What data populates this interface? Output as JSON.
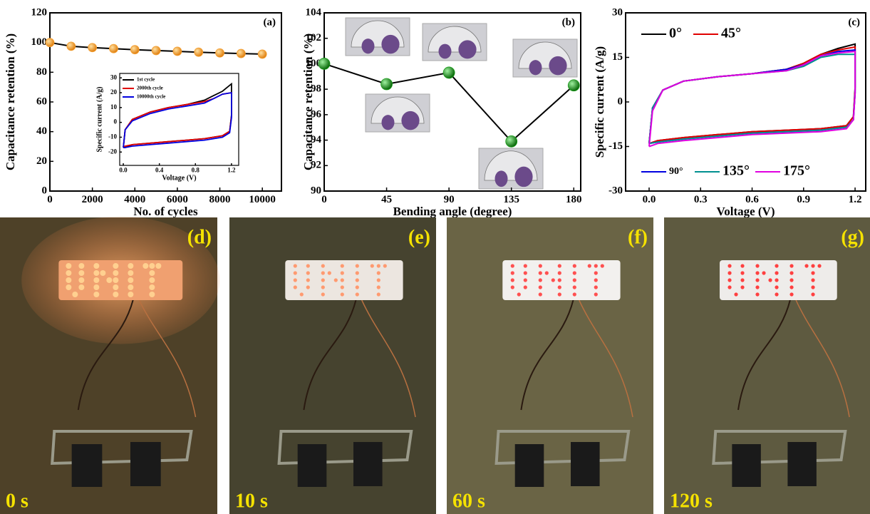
{
  "chart_data": [
    {
      "type": "line",
      "panel_label": "(a)",
      "xlabel": "No. of cycles",
      "ylabel": "Capacitance retention (%)",
      "x": [
        0,
        1000,
        2000,
        3000,
        4000,
        5000,
        6000,
        7000,
        8000,
        9000,
        10000
      ],
      "values": [
        100,
        97.5,
        96.6,
        95.9,
        95.2,
        94.6,
        94.1,
        93.5,
        93,
        92.6,
        92.2
      ],
      "color": "#f5a033",
      "line_color": "#000000",
      "xlim": [
        0,
        10900
      ],
      "ylim": [
        0,
        120
      ],
      "xticks": [
        0,
        2000,
        4000,
        6000,
        8000,
        10000
      ],
      "yticks": [
        0,
        20,
        40,
        60,
        80,
        100,
        120
      ]
    },
    {
      "type": "line",
      "xlabel": "Voltage (V)",
      "ylabel": "Specific current (A/g)",
      "x": [
        0,
        0.02,
        0.1,
        0.3,
        0.5,
        0.7,
        0.9,
        1.0,
        1.1,
        1.2,
        1.2,
        1.18,
        1.1,
        0.9,
        0.7,
        0.5,
        0.3,
        0.1,
        0.02,
        0
      ],
      "series": [
        {
          "name": "1st cycle",
          "color": "#000000",
          "values": [
            -17,
            -5,
            2,
            7,
            10,
            12,
            15,
            18,
            21,
            26,
            5,
            -6,
            -9,
            -11,
            -12,
            -13,
            -14,
            -15,
            -17,
            -17
          ]
        },
        {
          "name": "2000th cycle",
          "color": "#e00000",
          "values": [
            -17,
            -5,
            2,
            7,
            10,
            12,
            14,
            16,
            19,
            20,
            4,
            -6,
            -9,
            -11,
            -12,
            -13,
            -14,
            -15,
            -16,
            -17
          ]
        },
        {
          "name": "10000th cycle",
          "color": "#0000e0",
          "values": [
            -17,
            -5,
            1,
            6,
            9,
            11,
            13,
            16,
            19,
            20,
            3,
            -7,
            -10,
            -12,
            -13,
            -14,
            -15,
            -16,
            -17,
            -17
          ]
        }
      ],
      "xlim": [
        -0.04,
        1.28
      ],
      "ylim": [
        -29,
        33
      ],
      "xticks": [
        {
          "value": 0,
          "label": "0.0"
        },
        0.4,
        0.8,
        1.2
      ],
      "yticks": [
        -20,
        -10,
        0,
        10,
        20,
        30
      ]
    },
    {
      "type": "line",
      "panel_label": "(b)",
      "xlabel": "Bending angle (degree)",
      "ylabel": "Capacitance retention (%)",
      "x": [
        0,
        45,
        90,
        135,
        180
      ],
      "values": [
        100,
        98.4,
        99.3,
        93.9,
        98.3
      ],
      "color": "#1e9e1e",
      "line_color": "#000000",
      "xlim": [
        0,
        185
      ],
      "ylim": [
        90,
        104
      ],
      "xticks": [
        0,
        45,
        90,
        135,
        180
      ],
      "yticks": [
        90,
        92,
        94,
        96,
        98,
        100,
        102,
        104
      ]
    },
    {
      "type": "line",
      "panel_label": "(c)",
      "xlabel": "Voltage (V)",
      "ylabel": "Specific current (A/g)",
      "x": [
        0,
        0.02,
        0.08,
        0.2,
        0.4,
        0.6,
        0.8,
        0.9,
        1.0,
        1.1,
        1.2,
        1.2,
        1.19,
        1.15,
        1.0,
        0.8,
        0.6,
        0.4,
        0.2,
        0.05,
        0
      ],
      "series": [
        {
          "name": "0°",
          "color": "#000000",
          "values": [
            -14,
            -2,
            4,
            7,
            8.5,
            9.5,
            11,
            13,
            16,
            18,
            19.5,
            5,
            -5,
            -8,
            -9,
            -9.5,
            -10,
            -11,
            -12,
            -13,
            -14
          ]
        },
        {
          "name": "45°",
          "color": "#e00000",
          "values": [
            -14,
            -2,
            4,
            7,
            8.5,
            9.5,
            11,
            13,
            16,
            17.5,
            18.5,
            4,
            -5,
            -8,
            -9,
            -9.5,
            -10,
            -11,
            -12,
            -13,
            -14
          ]
        },
        {
          "name": "90°",
          "color": "#0000e0",
          "values": [
            -14,
            -2,
            4,
            7,
            8.5,
            9.5,
            11,
            12.5,
            15.5,
            17,
            17.5,
            3,
            -6,
            -8.5,
            -9.5,
            -10,
            -10.5,
            -11.5,
            -12.5,
            -13.5,
            -14
          ]
        },
        {
          "name": "135°",
          "color": "#009090",
          "values": [
            -14,
            -2,
            4,
            7,
            8.5,
            9.5,
            10.5,
            12,
            15,
            16,
            16,
            3,
            -6,
            -8.5,
            -9.5,
            -10,
            -10.5,
            -11.5,
            -12.5,
            -13.5,
            -14
          ]
        },
        {
          "name": "175°",
          "color": "#e000e0",
          "values": [
            -15,
            -3,
            4,
            7,
            8.5,
            9.5,
            10.5,
            12.5,
            15.5,
            16.5,
            17,
            3,
            -6,
            -9,
            -10,
            -10.5,
            -11,
            -12,
            -13,
            -14,
            -15
          ]
        }
      ],
      "xlim": [
        -0.137,
        1.262
      ],
      "ylim": [
        -30,
        30
      ],
      "xticks": [
        {
          "value": 0,
          "label": "0.0"
        },
        0.3,
        0.6,
        0.9,
        1.2
      ],
      "yticks": [
        -30,
        -15,
        0,
        15,
        30
      ]
    }
  ],
  "photos": [
    {
      "label": "(d)",
      "time": "0 s"
    },
    {
      "label": "(e)",
      "time": "10 s"
    },
    {
      "label": "(f)",
      "time": "60 s"
    },
    {
      "label": "(g)",
      "time": "120 s"
    }
  ]
}
